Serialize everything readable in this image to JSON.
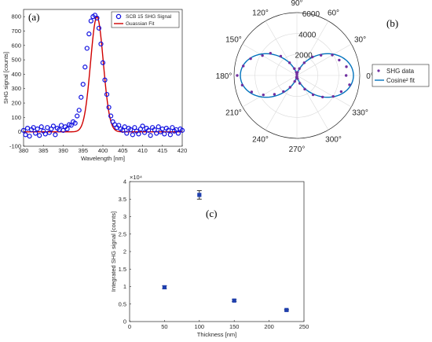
{
  "colors": {
    "data_blue": "#1010e0",
    "fit_red": "#d00000",
    "polar_purple": "#7030a0",
    "polar_fit": "#0072bd",
    "square_blue": "#1f3fae",
    "axis": "#262626",
    "grid": "#d9d9d9"
  },
  "chart_data": [
    {
      "id": "a",
      "type": "scatter",
      "panel_label": "(a)",
      "xlabel": "Wavelength [nm]",
      "ylabel": "SHG signal [counts]",
      "xlim": [
        380,
        420
      ],
      "ylim": [
        -100,
        850
      ],
      "xticks": [
        380,
        385,
        390,
        395,
        400,
        405,
        410,
        415,
        420
      ],
      "yticks": [
        -100,
        0,
        100,
        200,
        300,
        400,
        500,
        600,
        700,
        800
      ],
      "grid": false,
      "legend": "top-right",
      "series": [
        {
          "name": "SCB 15 SHG Signal",
          "marker": "open-circle",
          "x": [
            380,
            380.5,
            381,
            381.5,
            382,
            382.5,
            383,
            383.5,
            384,
            384.5,
            385,
            385.5,
            386,
            386.5,
            387,
            387.5,
            388,
            388.5,
            389,
            389.5,
            390,
            390.5,
            391,
            391.5,
            392,
            392.5,
            393,
            393.5,
            394,
            394.5,
            395,
            395.5,
            396,
            396.5,
            397,
            397.5,
            398,
            398.5,
            399,
            399.5,
            400,
            400.5,
            401,
            401.5,
            402,
            402.5,
            403,
            403.5,
            404,
            404.5,
            405,
            405.5,
            406,
            406.5,
            407,
            407.5,
            408,
            408.5,
            409,
            409.5,
            410,
            410.5,
            411,
            411.5,
            412,
            412.5,
            413,
            413.5,
            414,
            414.5,
            415,
            415.5,
            416,
            416.5,
            417,
            417.5,
            418,
            418.5,
            419,
            419.5,
            420
          ],
          "y": [
            10,
            -20,
            25,
            -30,
            15,
            30,
            -10,
            20,
            -25,
            35,
            5,
            -15,
            30,
            -5,
            20,
            40,
            -20,
            25,
            15,
            45,
            10,
            35,
            20,
            50,
            45,
            70,
            60,
            110,
            150,
            240,
            330,
            450,
            580,
            680,
            770,
            800,
            810,
            790,
            720,
            610,
            480,
            360,
            260,
            170,
            110,
            70,
            50,
            30,
            45,
            20,
            10,
            35,
            -10,
            25,
            15,
            -20,
            30,
            5,
            -15,
            20,
            40,
            -5,
            25,
            10,
            -25,
            30,
            15,
            -10,
            35,
            0,
            20,
            -15,
            25,
            10,
            -20,
            30,
            5,
            15,
            -10,
            20,
            10
          ]
        },
        {
          "name": "Guassian Fit",
          "marker": "line",
          "center": 398.5,
          "amplitude": 800,
          "sigma": 1.6
        }
      ]
    },
    {
      "id": "b",
      "type": "polar",
      "panel_label": "(b)",
      "rlim": [
        0,
        6000
      ],
      "rticks": [
        2000,
        4000,
        6000
      ],
      "theta_ticks": [
        "0°",
        "30°",
        "60°",
        "90°",
        "120°",
        "150°",
        "180°",
        "210°",
        "240°",
        "270°",
        "300°",
        "330°"
      ],
      "legend": "right",
      "series": [
        {
          "name": "SHG data",
          "marker": "dot",
          "theta_deg": [
            0,
            10,
            20,
            30,
            40,
            50,
            60,
            70,
            80,
            90,
            100,
            110,
            120,
            130,
            140,
            150,
            160,
            170,
            180,
            190,
            200,
            210,
            220,
            230,
            240,
            250,
            260,
            270,
            280,
            290,
            300,
            310,
            320,
            330,
            340,
            350
          ],
          "r": [
            4700,
            4800,
            4300,
            3900,
            3000,
            2300,
            1400,
            700,
            300,
            100,
            300,
            700,
            1400,
            2400,
            3300,
            3800,
            4700,
            5200,
            5700,
            5300,
            4600,
            3700,
            2800,
            2000,
            1300,
            600,
            200,
            100,
            300,
            800,
            1500,
            2400,
            3200,
            4000,
            4500,
            5100
          ]
        },
        {
          "name": "Cosine² fit",
          "marker": "line",
          "amplitude": 5400
        }
      ]
    },
    {
      "id": "c",
      "type": "scatter",
      "panel_label": "(c)",
      "xlabel": "Thickness [nm]",
      "ylabel": "Integrated SHG signal [counts]",
      "xlim": [
        0,
        250
      ],
      "ylim": [
        0,
        4
      ],
      "y_exponent": "×10⁴",
      "xticks": [
        0,
        50,
        100,
        150,
        200,
        250
      ],
      "yticks": [
        0,
        0.5,
        1,
        1.5,
        2,
        2.5,
        3,
        3.5,
        4
      ],
      "grid": false,
      "series": [
        {
          "marker": "square",
          "x": [
            50,
            100,
            150,
            225
          ],
          "y": [
            0.98,
            3.62,
            0.6,
            0.33
          ],
          "err": [
            0.04,
            0.12,
            0.03,
            0.02
          ]
        }
      ]
    }
  ]
}
